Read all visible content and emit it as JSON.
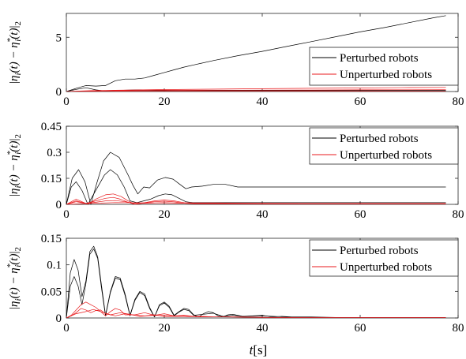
{
  "chart_data": [
    {
      "type": "line",
      "ylabel": "|η_i(t) − η_i*(t)|_2",
      "xlim": [
        0,
        80
      ],
      "ylim": [
        0,
        7.2
      ],
      "xticks": [
        0,
        20,
        40,
        60,
        80
      ],
      "yticks": [
        0,
        5
      ],
      "ytick_labels": [
        "0",
        "5"
      ],
      "grid": false,
      "legend": {
        "placement": "right",
        "entries": [
          {
            "label": "Perturbed robots",
            "color": "#000000"
          },
          {
            "label": "Unperturbed robots",
            "color": "#e8191c"
          }
        ]
      },
      "series": [
        {
          "name": "Perturbed robots",
          "color": "#000000",
          "x": [
            0,
            2,
            4,
            6,
            8,
            10,
            12,
            14,
            16,
            18,
            20,
            22,
            24,
            26,
            30,
            35,
            40,
            45,
            50,
            55,
            60,
            65,
            70,
            75,
            77.5
          ],
          "y": [
            0,
            0.3,
            0.55,
            0.5,
            0.55,
            1.0,
            1.15,
            1.15,
            1.25,
            1.5,
            1.75,
            2.0,
            2.25,
            2.45,
            2.85,
            3.3,
            3.7,
            4.15,
            4.6,
            5.05,
            5.5,
            5.9,
            6.35,
            6.8,
            7.0
          ]
        },
        {
          "name": "Perturbed robots",
          "color": "#000000",
          "x": [
            0,
            2,
            4,
            6,
            8,
            10,
            15,
            20,
            25,
            30,
            40,
            50,
            60,
            70,
            77.5
          ],
          "y": [
            0,
            0.2,
            0.35,
            0.15,
            0.05,
            0.1,
            0.15,
            0.12,
            0.1,
            0.1,
            0.1,
            0.1,
            0.1,
            0.1,
            0.1
          ]
        },
        {
          "name": "Unperturbed robots",
          "color": "#e8191c",
          "x": [
            0,
            5,
            10,
            20,
            30,
            40,
            50,
            60,
            70,
            77.5
          ],
          "y": [
            0,
            0.08,
            0.12,
            0.18,
            0.22,
            0.26,
            0.3,
            0.33,
            0.36,
            0.38
          ]
        },
        {
          "name": "Unperturbed robots",
          "color": "#e8191c",
          "x": [
            0,
            5,
            10,
            20,
            30,
            40,
            50,
            60,
            70,
            77.5
          ],
          "y": [
            0,
            0.05,
            0.08,
            0.1,
            0.12,
            0.13,
            0.14,
            0.15,
            0.16,
            0.17
          ]
        },
        {
          "name": "Unperturbed robots",
          "color": "#e8191c",
          "x": [
            0,
            5,
            10,
            20,
            40,
            60,
            77.5
          ],
          "y": [
            0,
            0.03,
            0.04,
            0.05,
            0.05,
            0.05,
            0.05
          ]
        }
      ]
    },
    {
      "type": "line",
      "ylabel": "|η_i(t) − η_i*(t)|_2",
      "xlim": [
        0,
        80
      ],
      "ylim": [
        0,
        0.45
      ],
      "xticks": [
        0,
        20,
        40,
        60,
        80
      ],
      "yticks": [
        0,
        0.15,
        0.3,
        0.45
      ],
      "ytick_labels": [
        "0",
        "0.15",
        "0.3",
        "0.45"
      ],
      "grid": false,
      "legend": {
        "placement": "top-right",
        "entries": [
          {
            "label": "Perturbed robots",
            "color": "#000000"
          },
          {
            "label": "Unperturbed robots",
            "color": "#e8191c"
          }
        ]
      },
      "series": [
        {
          "name": "Perturbed robots",
          "color": "#000000",
          "x": [
            0,
            1.2,
            2.5,
            3.8,
            5,
            6.2,
            7.6,
            9,
            10.8,
            12.6,
            13.6,
            14.6,
            15.8,
            17,
            18.6,
            20.2,
            21.8,
            23.2,
            24.4,
            25.6,
            27.8,
            30,
            32.5,
            35,
            40,
            45,
            50,
            55,
            60,
            65,
            70,
            75,
            77.5
          ],
          "y": [
            0,
            0.15,
            0.2,
            0.13,
            0,
            0.12,
            0.25,
            0.3,
            0.27,
            0.17,
            0.11,
            0.06,
            0.1,
            0.095,
            0.14,
            0.155,
            0.145,
            0.115,
            0.09,
            0.1,
            0.105,
            0.115,
            0.115,
            0.1,
            0.1,
            0.1,
            0.1,
            0.1,
            0.1,
            0.1,
            0.1,
            0.1,
            0.1
          ]
        },
        {
          "name": "Perturbed robots",
          "color": "#000000",
          "x": [
            0,
            1,
            2,
            3.2,
            4.4,
            6,
            7.8,
            9,
            10.4,
            11.8,
            13,
            14.4,
            15.8,
            17.2,
            18.8,
            20.2,
            21.6,
            23,
            24.4,
            25.8,
            30,
            35,
            40,
            50,
            60,
            70,
            77.5
          ],
          "y": [
            0,
            0.1,
            0.13,
            0.08,
            0,
            0.08,
            0.17,
            0.2,
            0.17,
            0.1,
            0.02,
            0.01,
            0.02,
            0.03,
            0.05,
            0.06,
            0.055,
            0.035,
            0.015,
            0.01,
            0.01,
            0.01,
            0.01,
            0.01,
            0.01,
            0.01,
            0.01
          ]
        },
        {
          "name": "Unperturbed robots",
          "color": "#e8191c",
          "x": [
            0,
            2,
            4.4,
            6,
            8,
            9.6,
            11.2,
            12.6,
            14,
            16,
            18,
            20,
            22,
            24,
            26,
            30,
            35,
            40,
            50,
            60,
            70,
            77.5
          ],
          "y": [
            0,
            0.03,
            0,
            0.03,
            0.055,
            0.06,
            0.045,
            0.02,
            0,
            0.01,
            0.02,
            0.025,
            0.02,
            0.01,
            0.008,
            0.008,
            0.007,
            0.006,
            0.005,
            0.005,
            0.005,
            0.005
          ]
        },
        {
          "name": "Unperturbed robots",
          "color": "#e8191c",
          "x": [
            0,
            2,
            4,
            6,
            8,
            9.6,
            11,
            12.6,
            14,
            16,
            18,
            20,
            22,
            24,
            26,
            30,
            35,
            40,
            50,
            60,
            70,
            77.5
          ],
          "y": [
            0,
            0.02,
            0.005,
            0.02,
            0.035,
            0.04,
            0.03,
            0.012,
            0,
            0.008,
            0.015,
            0.018,
            0.014,
            0.006,
            0.004,
            0.004,
            0.004,
            0.003,
            0.003,
            0.003,
            0.003,
            0.003
          ]
        },
        {
          "name": "Unperturbed robots",
          "color": "#e8191c",
          "x": [
            0,
            2,
            4,
            6,
            8,
            10,
            12,
            14,
            16,
            20,
            24,
            30,
            40,
            50,
            60,
            70,
            77.5
          ],
          "y": [
            0,
            0.015,
            0.005,
            0.012,
            0.02,
            0.022,
            0.015,
            0.005,
            0.006,
            0.01,
            0.006,
            0.004,
            0.003,
            0.003,
            0.003,
            0.003,
            0.003
          ]
        },
        {
          "name": "Unperturbed robots",
          "color": "#e8191c",
          "x": [
            0,
            5,
            10,
            20,
            30,
            40,
            50,
            60,
            70,
            77.5
          ],
          "y": [
            0,
            0.006,
            0.01,
            0.008,
            0.005,
            0.004,
            0.004,
            0.004,
            0.004,
            0.004
          ]
        }
      ]
    },
    {
      "type": "line",
      "xlabel": "t[s]",
      "ylabel": "|η_i(t) − η_i*(t)|_2",
      "xlim": [
        0,
        80
      ],
      "ylim": [
        0,
        0.15
      ],
      "xticks": [
        0,
        20,
        40,
        60,
        80
      ],
      "yticks": [
        0,
        0.05,
        0.1,
        0.15
      ],
      "ytick_labels": [
        "0",
        "0.05",
        "0.1",
        "0.15"
      ],
      "grid": false,
      "legend": {
        "placement": "top-right",
        "entries": [
          {
            "label": "Perturbed robots",
            "color": "#000000"
          },
          {
            "label": "Unperturbed robots",
            "color": "#e8191c"
          }
        ]
      },
      "series": [
        {
          "name": "Perturbed robots",
          "color": "#000000",
          "x": [
            0,
            0.8,
            1.6,
            2.4,
            3.2,
            4,
            4.8,
            5.6,
            6.4,
            7.2,
            8,
            9,
            10,
            11,
            12,
            13,
            14,
            15,
            16,
            17,
            18,
            19,
            20,
            21,
            22,
            23,
            24,
            25,
            26,
            27,
            28,
            29,
            30,
            31,
            32,
            33,
            34,
            36,
            38,
            40,
            42,
            44,
            46,
            50,
            55,
            60,
            65,
            70,
            77.5
          ],
          "y": [
            0,
            0.085,
            0.11,
            0.09,
            0.04,
            0.07,
            0.125,
            0.135,
            0.115,
            0.06,
            0.005,
            0.05,
            0.078,
            0.075,
            0.045,
            0.005,
            0.035,
            0.05,
            0.045,
            0.02,
            0.002,
            0.025,
            0.03,
            0.022,
            0.005,
            0.012,
            0.018,
            0.016,
            0.006,
            0.002,
            0.008,
            0.012,
            0.01,
            0.004,
            0.002,
            0.006,
            0.007,
            0.003,
            0.004,
            0.005,
            0.002,
            0.003,
            0.002,
            0.002,
            0.001,
            0.001,
            0.001,
            0.001,
            0.001
          ]
        },
        {
          "name": "Perturbed robots",
          "color": "#000000",
          "x": [
            0,
            0.8,
            1.6,
            2.4,
            3.2,
            4,
            4.8,
            5.6,
            6.4,
            7.2,
            8,
            9,
            10,
            11,
            12,
            13,
            14,
            15,
            16,
            17,
            18,
            19,
            20,
            21,
            22,
            23,
            24,
            25,
            26,
            28,
            30,
            32,
            34,
            36,
            40,
            45,
            50,
            60,
            70,
            77.5
          ],
          "y": [
            0,
            0.06,
            0.078,
            0.06,
            0.025,
            0.065,
            0.12,
            0.13,
            0.112,
            0.055,
            0.004,
            0.048,
            0.075,
            0.072,
            0.042,
            0.004,
            0.033,
            0.048,
            0.042,
            0.018,
            0.002,
            0.023,
            0.028,
            0.02,
            0.004,
            0.011,
            0.016,
            0.014,
            0.005,
            0.007,
            0.009,
            0.003,
            0.005,
            0.003,
            0.004,
            0.002,
            0.001,
            0.001,
            0.001,
            0.001
          ]
        },
        {
          "name": "Unperturbed robots",
          "color": "#e8191c",
          "x": [
            0,
            1,
            2,
            3,
            4,
            5,
            6,
            7,
            8,
            9,
            10,
            11,
            12,
            14,
            16,
            18,
            20,
            22,
            24,
            26,
            28,
            30,
            34,
            40,
            50,
            60,
            77.5
          ],
          "y": [
            0,
            0.005,
            0.015,
            0.025,
            0.03,
            0.025,
            0.02,
            0.012,
            0.004,
            0.012,
            0.018,
            0.015,
            0.006,
            0.006,
            0.01,
            0.005,
            0.008,
            0.004,
            0.005,
            0.003,
            0.003,
            0.002,
            0.002,
            0.001,
            0.001,
            0.001,
            0.001
          ]
        },
        {
          "name": "Unperturbed robots",
          "color": "#e8191c",
          "x": [
            0,
            1,
            2,
            3,
            4,
            5,
            6,
            7,
            8,
            10,
            12,
            14,
            16,
            18,
            20,
            24,
            28,
            32,
            40,
            50,
            60,
            77.5
          ],
          "y": [
            0,
            0.004,
            0.01,
            0.018,
            0.015,
            0.01,
            0.014,
            0.015,
            0.008,
            0.004,
            0.008,
            0.005,
            0.004,
            0.006,
            0.003,
            0.003,
            0.002,
            0.002,
            0.001,
            0.001,
            0.001,
            0.001
          ]
        },
        {
          "name": "Unperturbed robots",
          "color": "#e8191c",
          "x": [
            0,
            2,
            4,
            5.5,
            7,
            9,
            11,
            13,
            15,
            18,
            22,
            26,
            30,
            36,
            42,
            50,
            60,
            77.5
          ],
          "y": [
            0,
            0.008,
            0.012,
            0.016,
            0.012,
            0.006,
            0.01,
            0.007,
            0.003,
            0.005,
            0.004,
            0.003,
            0.002,
            0.002,
            0.001,
            0.001,
            0.001,
            0.001
          ]
        }
      ]
    }
  ]
}
